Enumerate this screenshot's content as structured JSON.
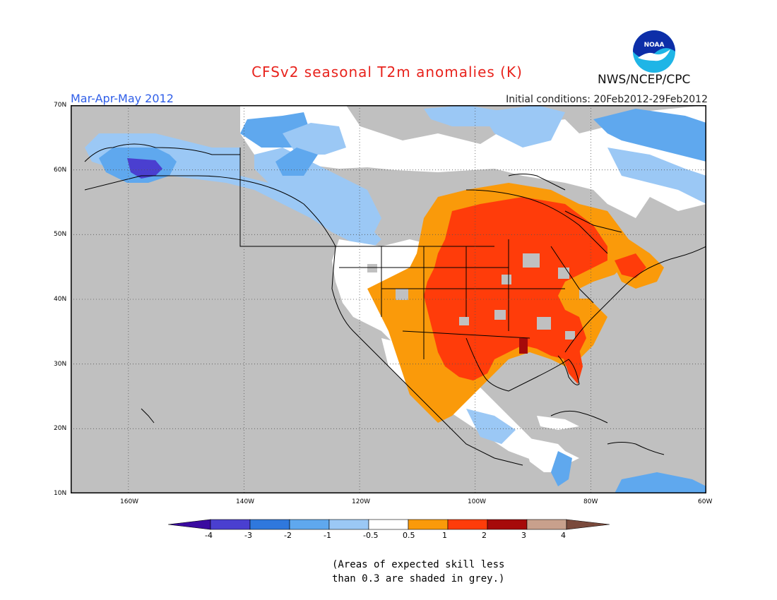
{
  "title": "CFSv2 seasonal T2m anomalies (K)",
  "period": "Mar-Apr-May 2012",
  "initial_conditions": "Initial conditions: 20Feb2012-29Feb2012",
  "organization": "NWS/NCEP/CPC",
  "logo": {
    "icon": "noaa-logo",
    "text": "NOAA"
  },
  "map": {
    "region": "North America",
    "lat_labels": [
      "70N",
      "60N",
      "50N",
      "40N",
      "30N",
      "20N",
      "10N"
    ],
    "lon_labels": [
      "160W",
      "140W",
      "120W",
      "100W",
      "80W",
      "60W"
    ],
    "grid": "dotted",
    "colors": {
      "ocean_no_skill": "#c0c0c0",
      "neutral": "#ffffff",
      "cold_0_5_1": "#9bc8f5",
      "cold_1_2": "#5fa8ee",
      "cold_2_3": "#2f78dd",
      "cold_3_4": "#4a3fd0",
      "warm_0_5_1": "#fa9a0a",
      "warm_1_2": "#ff3c0a",
      "warm_2_3": "#a60a0a",
      "coast": "#000000"
    }
  },
  "colorbar": {
    "labels": [
      "-4",
      "-3",
      "-2",
      "-1",
      "-0.5",
      "0.5",
      "1",
      "2",
      "3",
      "4"
    ],
    "colors": [
      "#3a0aa0",
      "#4a3fd0",
      "#2f78dd",
      "#5fa8ee",
      "#9bc8f5",
      "#ffffff",
      "#fa9a0a",
      "#ff3c0a",
      "#a60a0a",
      "#c8a08c",
      "#7a4a3c"
    ]
  },
  "note": {
    "line1": "(Areas of expected skill less",
    "line2": "than 0.3 are shaded in grey.)"
  }
}
